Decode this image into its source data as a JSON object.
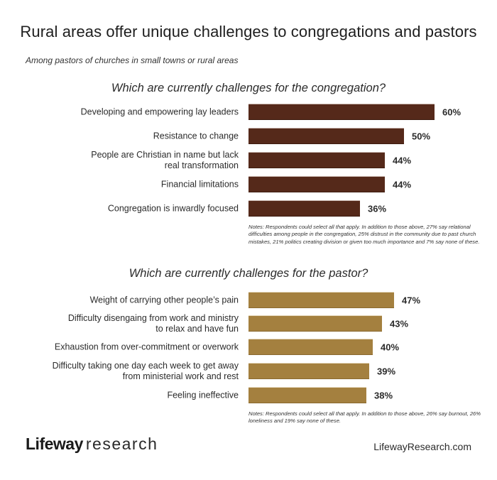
{
  "header": {
    "title": "Rural areas offer unique challenges to congregations and pastors",
    "subtitle": "Among pastors of churches in small towns or rural areas"
  },
  "sections": {
    "congregation": {
      "heading": "Which are currently challenges for the congregation?",
      "color": "#55291a",
      "items": [
        {
          "label": "Developing and empowering lay leaders",
          "label_lines": [
            "Developing and empowering lay leaders"
          ],
          "value": 60,
          "display": "60%"
        },
        {
          "label": "Resistance to change",
          "label_lines": [
            "Resistance to change"
          ],
          "value": 50,
          "display": "50%"
        },
        {
          "label": "People are Christian in name but lack real transformation",
          "label_lines": [
            "People are Christian in name but lack",
            "real transformation"
          ],
          "value": 44,
          "display": "44%"
        },
        {
          "label": "Financial limitations",
          "label_lines": [
            "Financial limitations"
          ],
          "value": 44,
          "display": "44%"
        },
        {
          "label": "Congregation is inwardly focused",
          "label_lines": [
            "Congregation is inwardly focused"
          ],
          "value": 36,
          "display": "36%"
        }
      ],
      "notes": "Notes: Respondents could select all that apply. In addition to those above, 27% say relational difficulties among people in the congregation, 25% distrust in the community due to past church mistakes, 21% politics creating division or given too much importance and 7% say none of these."
    },
    "pastor": {
      "heading": "Which are currently challenges for the pastor?",
      "color": "#a4803f",
      "items": [
        {
          "label": "Weight of carrying other people’s pain",
          "label_lines": [
            "Weight of carrying other people’s pain"
          ],
          "value": 47,
          "display": "47%"
        },
        {
          "label": "Difficulty disengaing from work and ministry to relax and have fun",
          "label_lines": [
            "Difficulty disengaing from work and ministry",
            "to relax and have fun"
          ],
          "value": 43,
          "display": "43%"
        },
        {
          "label": "Exhaustion from over-commitment or overwork",
          "label_lines": [
            "Exhaustion from over-commitment or overwork"
          ],
          "value": 40,
          "display": "40%"
        },
        {
          "label": "Difficulty taking one day each week to get away from ministerial work and rest",
          "label_lines": [
            "Difficulty taking one day each week to get away",
            "from ministerial work and rest"
          ],
          "value": 39,
          "display": "39%"
        },
        {
          "label": "Feeling ineffective",
          "label_lines": [
            "Feeling ineffective"
          ],
          "value": 38,
          "display": "38%"
        }
      ],
      "notes": "Notes: Respondents could select all that apply. In addition to those above, 26% say burnout, 26% loneliness and 19% say none of these."
    }
  },
  "footer": {
    "logo_brand": "Lifeway",
    "logo_suffix": "research",
    "site_url": "LifewayResearch.com"
  },
  "chart_data": [
    {
      "type": "bar",
      "orientation": "horizontal",
      "title": "Which are currently challenges for the congregation?",
      "categories": [
        "Developing and empowering lay leaders",
        "Resistance to change",
        "People are Christian in name but lack real transformation",
        "Financial limitations",
        "Congregation is inwardly focused"
      ],
      "values": [
        60,
        50,
        44,
        44,
        36
      ],
      "unit": "%",
      "color": "#55291a",
      "xlabel": "",
      "ylabel": "",
      "grid": false,
      "legend": "none",
      "annotation": "Notes: Respondents could select all that apply. In addition to those above, 27% say relational difficulties among people in the congregation, 25% distrust in the community due to past church mistakes, 21% politics creating division or given too much importance and 7% say none of these."
    },
    {
      "type": "bar",
      "orientation": "horizontal",
      "title": "Which are currently challenges for the pastor?",
      "categories": [
        "Weight of carrying other people’s pain",
        "Difficulty disengaing from work and ministry to relax and have fun",
        "Exhaustion from over-commitment or overwork",
        "Difficulty taking one day each week to get away from ministerial work and rest",
        "Feeling ineffective"
      ],
      "values": [
        47,
        43,
        40,
        39,
        38
      ],
      "unit": "%",
      "color": "#a4803f",
      "xlabel": "",
      "ylabel": "",
      "grid": false,
      "legend": "none",
      "annotation": "Notes: Respondents could select all that apply. In addition to those above, 26% say burnout, 26% loneliness and 19% say none of these."
    }
  ]
}
